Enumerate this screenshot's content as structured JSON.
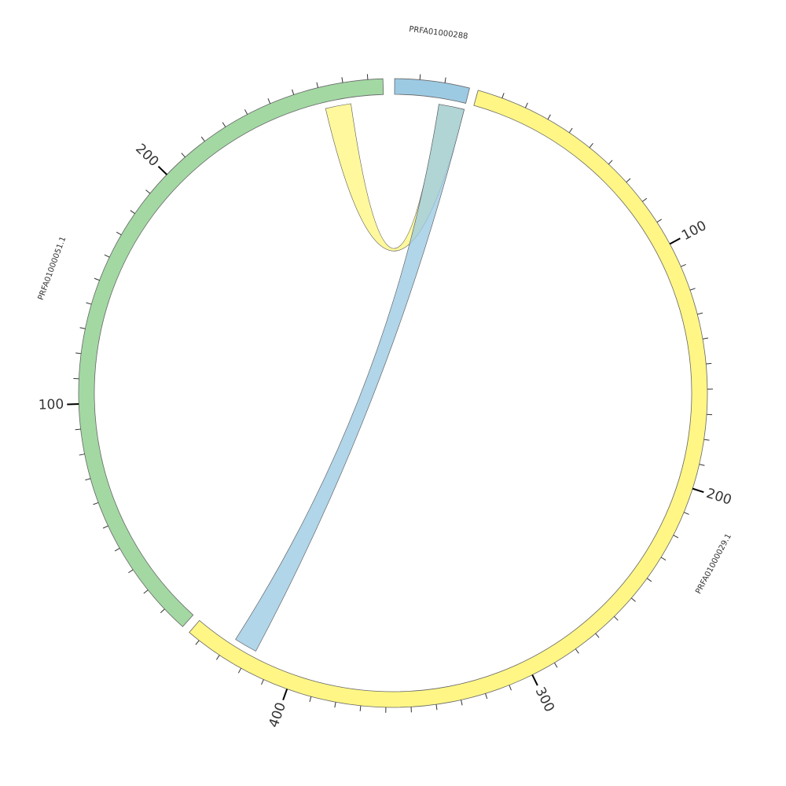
{
  "chart_data": {
    "type": "chord",
    "segments": [
      {
        "name": "PRFA01000288",
        "length": 30,
        "color": "#9dcae3",
        "major_ticks": []
      },
      {
        "name": "PRFA01000029.1",
        "length": 445,
        "color": "#fff685",
        "major_ticks": [
          100,
          200,
          300,
          400
        ]
      },
      {
        "name": "PRFA01000051.1",
        "length": 296,
        "color": "#a3d8a3",
        "major_ticks": [
          100,
          200
        ]
      }
    ],
    "minor_tick_step": 10,
    "links": [
      {
        "color": "#fff685",
        "source": {
          "segment": "PRFA01000051.1",
          "start": 271,
          "end": 282
        },
        "target": {
          "segment": "PRFA01000288",
          "start": 19,
          "end": 30
        }
      },
      {
        "color": "#9dcae3",
        "source": {
          "segment": "PRFA01000288",
          "start": 19,
          "end": 30
        },
        "target": {
          "segment": "PRFA01000029.1",
          "start": 418,
          "end": 428
        }
      }
    ]
  }
}
